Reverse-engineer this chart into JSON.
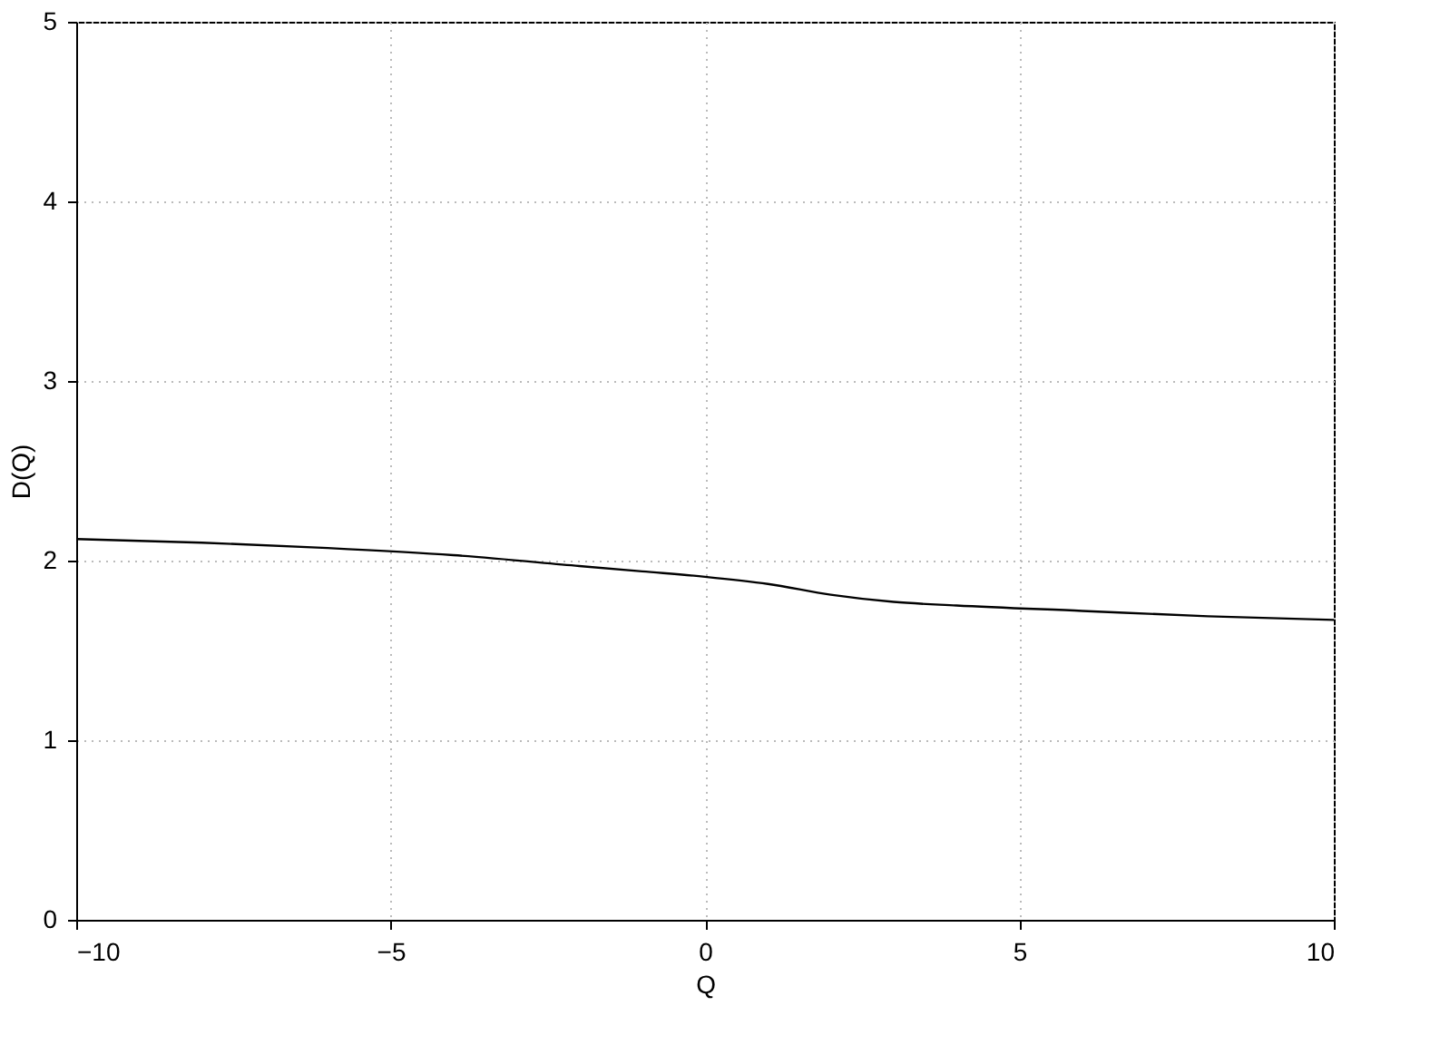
{
  "chart_data": {
    "type": "line",
    "xlabel": "Q",
    "ylabel": "D(Q)",
    "x": [
      -10,
      -8,
      -6,
      -4,
      -2,
      -1,
      0,
      1,
      2,
      3,
      4,
      6,
      8,
      10
    ],
    "series": [
      {
        "color": "#000000",
        "values": [
          2.12,
          2.1,
          2.07,
          2.03,
          1.97,
          1.94,
          1.91,
          1.87,
          1.81,
          1.77,
          1.75,
          1.72,
          1.69,
          1.67
        ]
      }
    ],
    "xlim": [
      -10,
      10
    ],
    "xticks": [
      -10,
      -5,
      0,
      5,
      10
    ],
    "ylim": [
      0,
      5
    ],
    "yticks": [
      0,
      1,
      2,
      3,
      4,
      5
    ],
    "grid": true,
    "legend": false,
    "marker": "none",
    "line_style": "solid"
  }
}
